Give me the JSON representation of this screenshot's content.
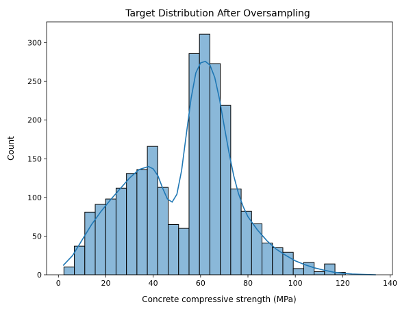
{
  "chart_data": {
    "type": "bar",
    "title": "Target Distribution After Oversampling",
    "xlabel": "Concrete compressive strength (MPa)",
    "ylabel": "Count",
    "xlim": [
      -5,
      141
    ],
    "ylim": [
      0,
      327
    ],
    "xticks": [
      0,
      20,
      40,
      60,
      80,
      100,
      120,
      140
    ],
    "yticks": [
      0,
      50,
      100,
      150,
      200,
      250,
      300
    ],
    "grid": false,
    "bins": {
      "start": 2.33,
      "width": 4.4,
      "counts": [
        10,
        37,
        81,
        91,
        98,
        112,
        131,
        136,
        166,
        113,
        65,
        60,
        286,
        311,
        273,
        219,
        111,
        82,
        66,
        41,
        35,
        29,
        8,
        16,
        4,
        14,
        3
      ]
    },
    "kde": {
      "x": [
        2,
        6,
        10,
        14,
        18,
        22,
        26,
        30,
        34,
        38,
        40,
        42,
        44,
        46,
        48,
        50,
        52,
        54,
        56,
        58,
        60,
        62,
        64,
        66,
        68,
        70,
        72,
        74,
        76,
        78,
        80,
        84,
        88,
        92,
        96,
        100,
        104,
        108,
        112,
        116,
        120,
        124,
        128,
        134
      ],
      "y": [
        12,
        25,
        45,
        65,
        82,
        97,
        111,
        125,
        136,
        140,
        137,
        128,
        112,
        98,
        94,
        104,
        135,
        182,
        228,
        261,
        274,
        276,
        271,
        255,
        227,
        192,
        158,
        128,
        105,
        88,
        75,
        58,
        44,
        33,
        25,
        18,
        13,
        9,
        6,
        3.5,
        2,
        1,
        0.5,
        0
      ]
    },
    "colors": {
      "bar_fill": "#8ab8d9",
      "bar_edge": "#000000",
      "kde_line": "#1f77b4"
    }
  }
}
